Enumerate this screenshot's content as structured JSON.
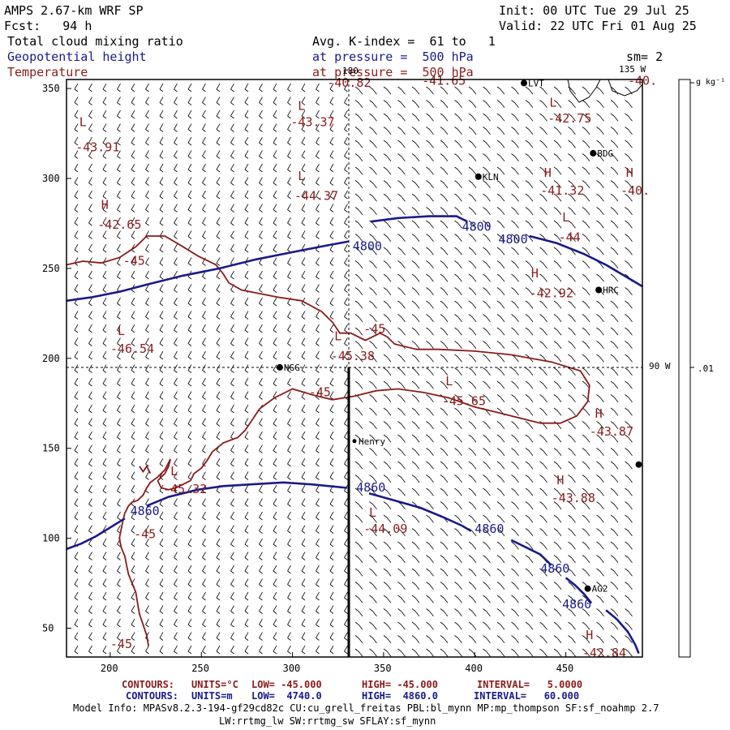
{
  "header": {
    "title": "AMPS 2.67-km WRF SP",
    "init": "Init: 00 UTC Tue 29 Jul 25",
    "fcst": "Fcst:   94 h",
    "valid": "Valid: 22 UTC Fri 01 Aug 25",
    "field1": "Total cloud mixing ratio",
    "avg": "Avg. K-index =  61 to   1",
    "field2": "Geopotential height",
    "pressure1": "at pressure =  500 hPa",
    "sm": "sm= 2",
    "field3": "Temperature",
    "pressure2": "at pressure =  500 hPa"
  },
  "meridians": {
    "m180": "180",
    "m135": "135 W",
    "m90": "90 W"
  },
  "colorbar": {
    "unit": "g kg⁻¹",
    "tick": ".01"
  },
  "axes": {
    "x_ticks": [
      "200",
      "250",
      "300",
      "350",
      "400",
      "450"
    ],
    "y_ticks": [
      "350",
      "300",
      "250",
      "200",
      "150",
      "100",
      "50"
    ],
    "xlim": [
      176,
      492
    ],
    "ylim": [
      34,
      355
    ]
  },
  "stations": [
    {
      "label": "LVT",
      "x": 427,
      "y": 353
    },
    {
      "label": "BDG",
      "x": 465,
      "y": 314
    },
    {
      "label": "KLN",
      "x": 402,
      "y": 301
    },
    {
      "label": "HRC",
      "x": 468,
      "y": 238
    },
    {
      "label": "NGG",
      "x": 293,
      "y": 195
    },
    {
      "label": "Henry",
      "x": 334,
      "y": 154
    },
    {
      "label": "AG2",
      "x": 462,
      "y": 72
    },
    {
      "label": "",
      "x": 490,
      "y": 141
    }
  ],
  "labels": {
    "temperature": [
      {
        "text": "-40.82",
        "x": 319,
        "y": 351
      },
      {
        "text": "-41.65",
        "x": 371,
        "y": 352
      },
      {
        "text": "-40.",
        "x": 484,
        "y": 352
      },
      {
        "text": "L",
        "x": 303,
        "y": 338
      },
      {
        "text": "-43.37",
        "x": 299,
        "y": 329
      },
      {
        "text": "L",
        "x": 441,
        "y": 340
      },
      {
        "text": "-42.75",
        "x": 440,
        "y": 331
      },
      {
        "text": "L",
        "x": 183,
        "y": 329
      },
      {
        "text": "-43.91",
        "x": 181,
        "y": 315
      },
      {
        "text": "H",
        "x": 438,
        "y": 301
      },
      {
        "text": "-41.32",
        "x": 436,
        "y": 291
      },
      {
        "text": "H",
        "x": 483,
        "y": 301
      },
      {
        "text": "-40.",
        "x": 480,
        "y": 291
      },
      {
        "text": "L",
        "x": 303,
        "y": 299
      },
      {
        "text": "-44.37",
        "x": 301,
        "y": 288
      },
      {
        "text": "H",
        "x": 195,
        "y": 283
      },
      {
        "text": "-42.65",
        "x": 193,
        "y": 272
      },
      {
        "text": "L",
        "x": 448,
        "y": 276
      },
      {
        "text": "-44",
        "x": 446,
        "y": 265
      },
      {
        "text": "-45",
        "x": 207,
        "y": 252
      },
      {
        "text": "H",
        "x": 431,
        "y": 245
      },
      {
        "text": "-42.92",
        "x": 430,
        "y": 234
      },
      {
        "text": "-45",
        "x": 339,
        "y": 214
      },
      {
        "text": "L",
        "x": 204,
        "y": 213
      },
      {
        "text": "-46.54",
        "x": 200,
        "y": 203
      },
      {
        "text": "L",
        "x": 323,
        "y": 210
      },
      {
        "text": "-45.38",
        "x": 321,
        "y": 199
      },
      {
        "text": "-45",
        "x": 309,
        "y": 179
      },
      {
        "text": "L",
        "x": 384,
        "y": 185
      },
      {
        "text": "-45.65",
        "x": 382,
        "y": 174
      },
      {
        "text": "H",
        "x": 466,
        "y": 167
      },
      {
        "text": "-43.87",
        "x": 463,
        "y": 157
      },
      {
        "text": "L",
        "x": 233,
        "y": 135
      },
      {
        "text": "-45.32",
        "x": 229,
        "y": 125
      },
      {
        "text": "H",
        "x": 445,
        "y": 130
      },
      {
        "text": "-43.88",
        "x": 442,
        "y": 120
      },
      {
        "text": "L",
        "x": 342,
        "y": 112
      },
      {
        "text": "-44.09",
        "x": 339,
        "y": 103
      },
      {
        "text": "-45",
        "x": 213,
        "y": 100
      },
      {
        "text": "-45",
        "x": 200,
        "y": 39
      },
      {
        "text": "H",
        "x": 461,
        "y": 44
      },
      {
        "text": "-42.84",
        "x": 459,
        "y": 34
      }
    ],
    "height": [
      {
        "text": "4800",
        "x": 333,
        "y": 260
      },
      {
        "text": "4800",
        "x": 393,
        "y": 271
      },
      {
        "text": "4800",
        "x": 413,
        "y": 264
      },
      {
        "text": "4860",
        "x": 335,
        "y": 126
      },
      {
        "text": "4860",
        "x": 211,
        "y": 113
      },
      {
        "text": "4860",
        "x": 400,
        "y": 103
      },
      {
        "text": "4860",
        "x": 436,
        "y": 81
      },
      {
        "text": "4860",
        "x": 448,
        "y": 61
      }
    ]
  },
  "footer": {
    "line1_label": "CONTOURS:",
    "line1_units": "UNITS=°C",
    "line1_low": "LOW= -45.000",
    "line1_high": "HIGH= -45.000",
    "line1_interval": "INTERVAL=   5.0000",
    "line2_label": "CONTOURS:",
    "line2_units": "UNITS=m",
    "line2_low": "LOW=  4740.0",
    "line2_high": "HIGH=  4860.0",
    "line2_interval": "INTERVAL=   60.000",
    "model1": "Model Info: MPASv8.2.3-194-gf29cd82c CU:cu_grell_freitas PBL:bl_mynn MP:mp_thompson SF:sf_noahmp 2.7",
    "model2": "LW:rrtmg_lw SW:rrtmg_sw SFLAY:sf_mynn"
  },
  "colors": {
    "temperature": "#8b1a1a",
    "height": "#1a1a8a",
    "frame": "#000000"
  }
}
